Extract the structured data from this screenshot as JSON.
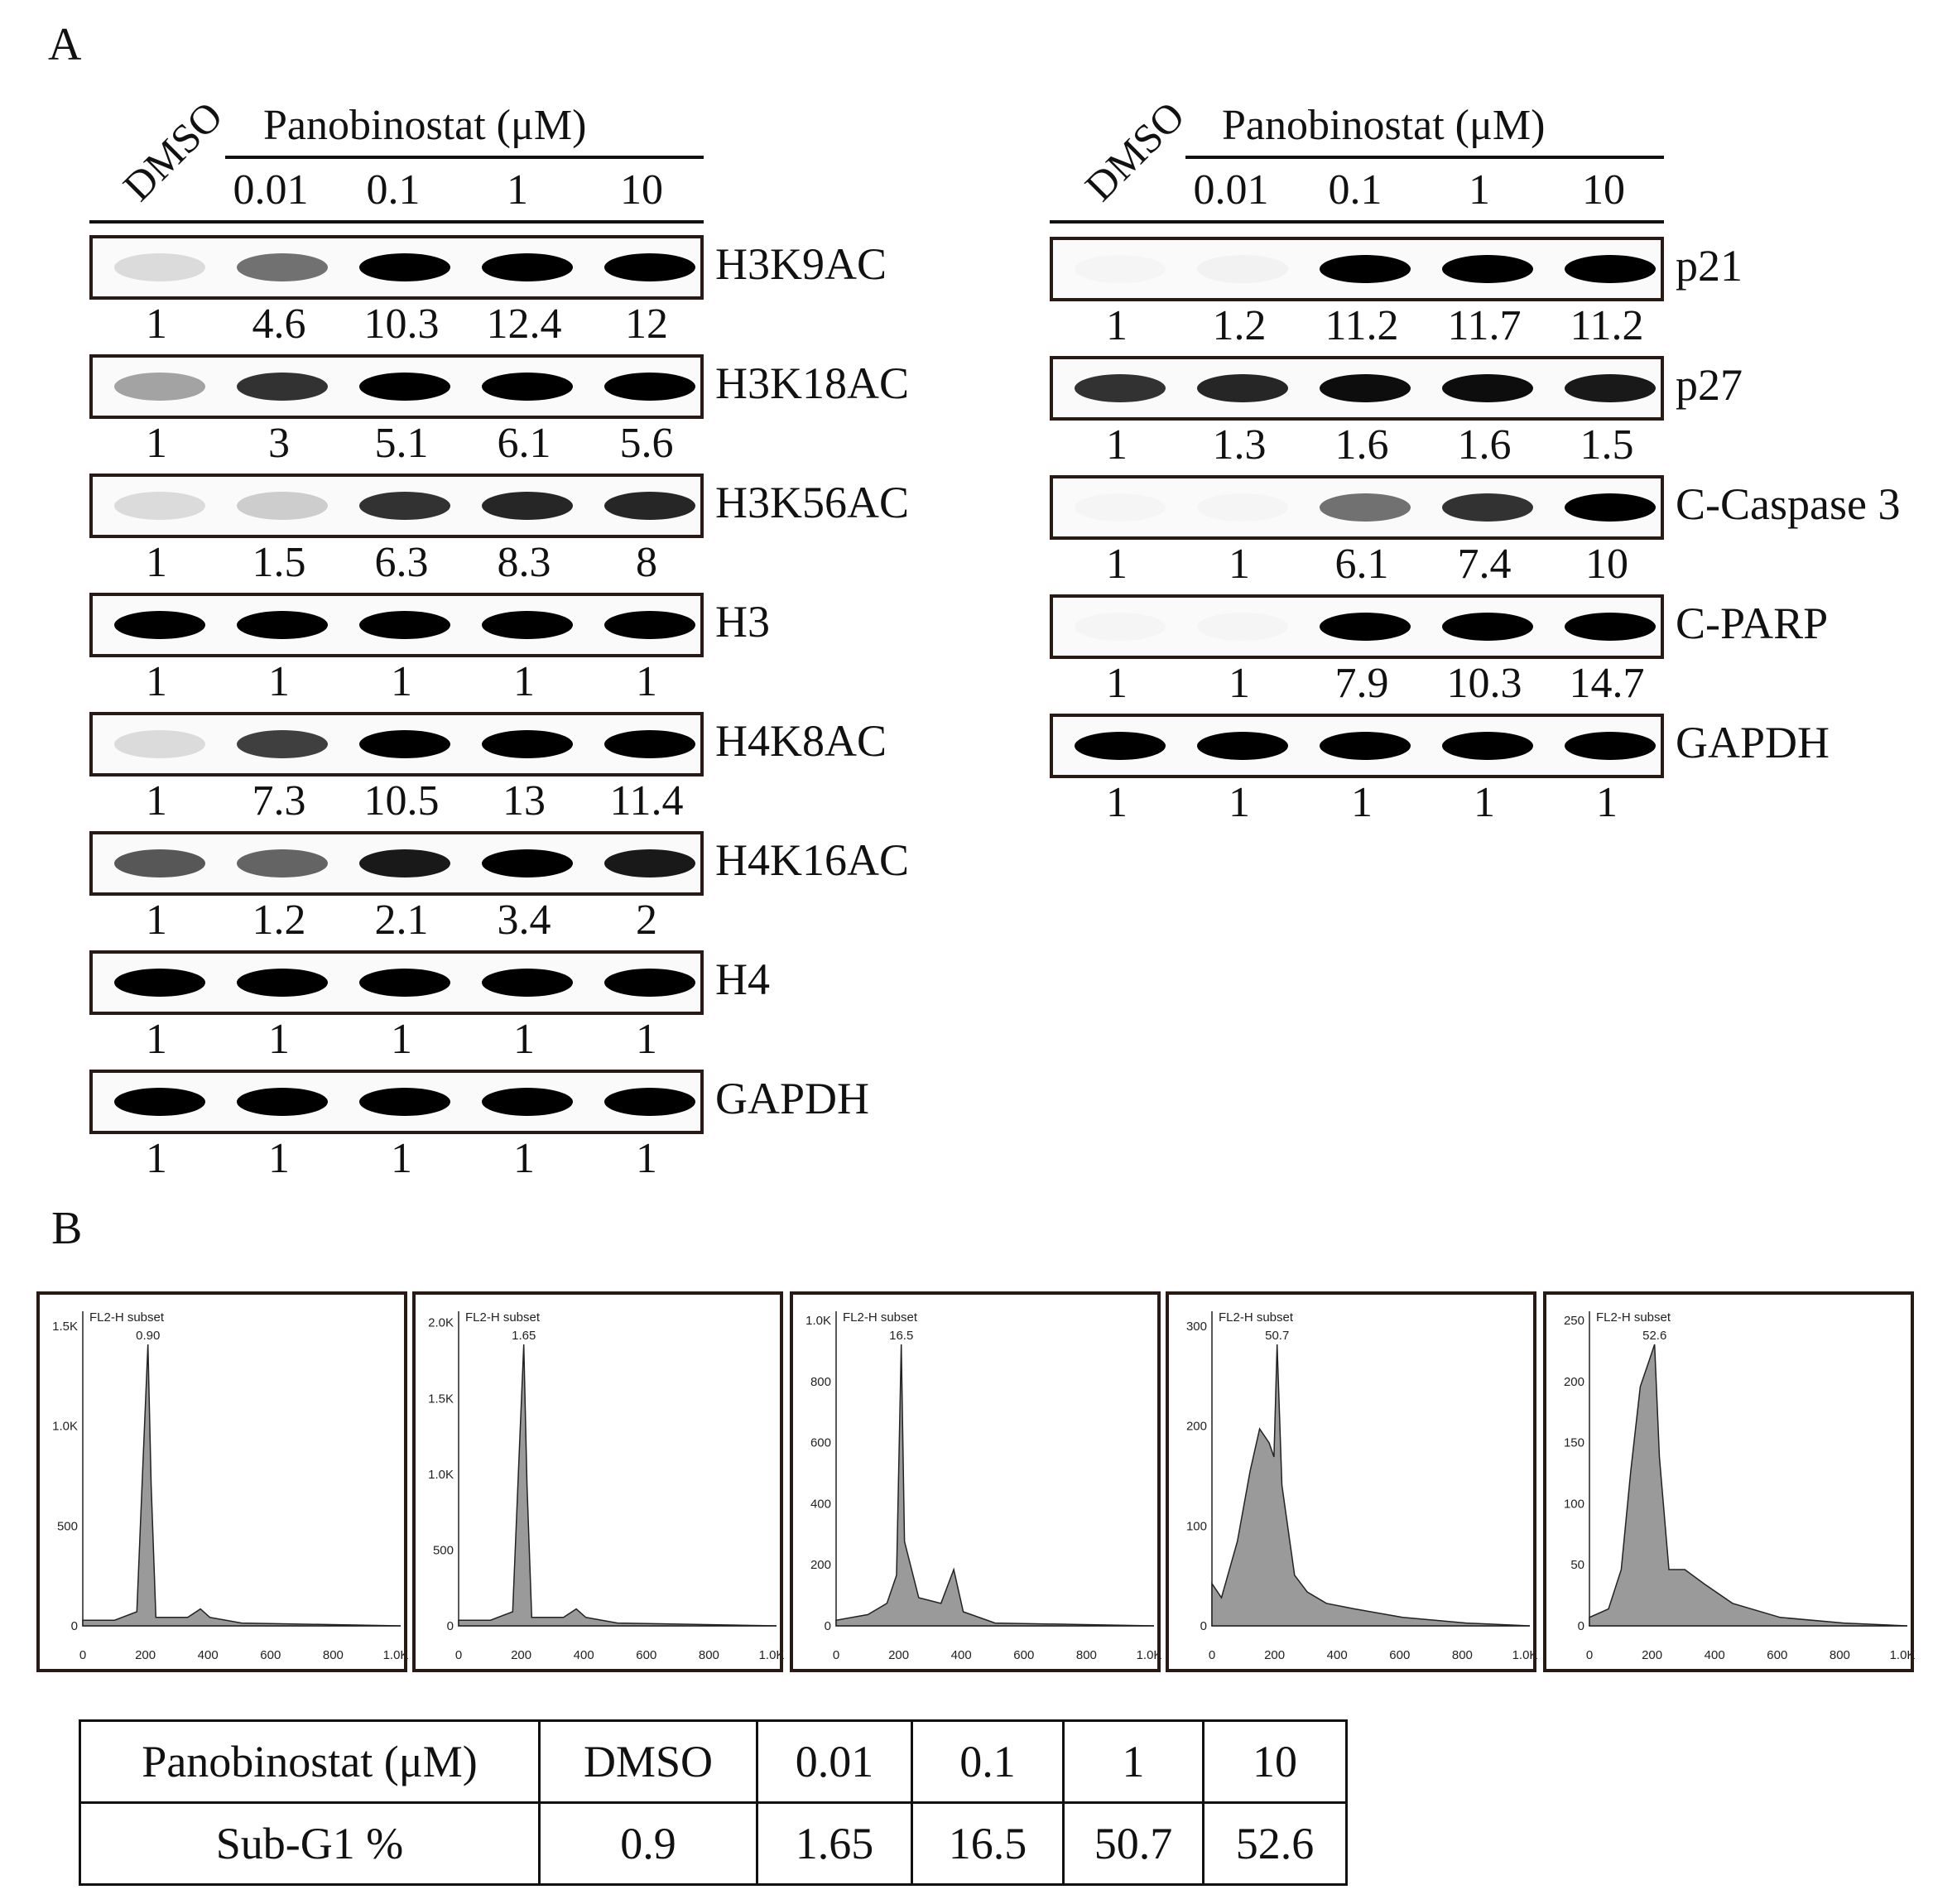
{
  "panel_a_label": "A",
  "panel_b_label": "B",
  "left": {
    "control": "DMSO",
    "treatment": "Panobinostat (μM)",
    "doses": [
      "0.01",
      "0.1",
      "1",
      "10"
    ],
    "blots": [
      {
        "name": "H3K9AC",
        "values": [
          "1",
          "4.6",
          "10.3",
          "12.4",
          "12"
        ],
        "intensity": [
          0.12,
          0.55,
          1,
          1,
          1
        ]
      },
      {
        "name": "H3K18AC",
        "values": [
          "1",
          "3",
          "5.1",
          "6.1",
          "5.6"
        ],
        "intensity": [
          0.35,
          0.8,
          1,
          1,
          1
        ]
      },
      {
        "name": "H3K56AC",
        "values": [
          "1",
          "1.5",
          "6.3",
          "8.3",
          "8"
        ],
        "intensity": [
          0.12,
          0.18,
          0.8,
          0.85,
          0.85
        ]
      },
      {
        "name": "H3",
        "values": [
          "1",
          "1",
          "1",
          "1",
          "1"
        ],
        "intensity": [
          1,
          1,
          1,
          1,
          1
        ]
      },
      {
        "name": "H4K8AC",
        "values": [
          "1",
          "7.3",
          "10.5",
          "13",
          "11.4"
        ],
        "intensity": [
          0.12,
          0.75,
          1,
          1,
          1
        ]
      },
      {
        "name": "H4K16AC",
        "values": [
          "1",
          "1.2",
          "2.1",
          "3.4",
          "2"
        ],
        "intensity": [
          0.65,
          0.6,
          0.9,
          1,
          0.9
        ]
      },
      {
        "name": "H4",
        "values": [
          "1",
          "1",
          "1",
          "1",
          "1"
        ],
        "intensity": [
          1,
          1,
          1,
          1,
          1
        ]
      },
      {
        "name": "GAPDH",
        "values": [
          "1",
          "1",
          "1",
          "1",
          "1"
        ],
        "intensity": [
          1,
          1,
          1,
          1,
          1
        ]
      }
    ]
  },
  "right": {
    "control": "DMSO",
    "treatment": "Panobinostat (μM)",
    "doses": [
      "0.01",
      "0.1",
      "1",
      "10"
    ],
    "blots": [
      {
        "name": "p21",
        "values": [
          "1",
          "1.2",
          "11.2",
          "11.7",
          "11.2"
        ],
        "intensity": [
          0.02,
          0.03,
          1,
          1,
          1
        ]
      },
      {
        "name": "p27",
        "values": [
          "1",
          "1.3",
          "1.6",
          "1.6",
          "1.5"
        ],
        "intensity": [
          0.8,
          0.85,
          0.95,
          0.95,
          0.9
        ]
      },
      {
        "name": "C-Caspase 3",
        "values": [
          "1",
          "1",
          "6.1",
          "7.4",
          "10"
        ],
        "intensity": [
          0.02,
          0.02,
          0.55,
          0.8,
          1
        ]
      },
      {
        "name": "C-PARP",
        "values": [
          "1",
          "1",
          "7.9",
          "10.3",
          "14.7"
        ],
        "intensity": [
          0.02,
          0.02,
          1,
          1,
          1
        ]
      },
      {
        "name": "GAPDH",
        "values": [
          "1",
          "1",
          "1",
          "1",
          "1"
        ],
        "intensity": [
          1,
          1,
          1,
          1,
          1
        ]
      }
    ]
  },
  "histograms": [
    {
      "gate": "FL2-H subset",
      "value": "0.90",
      "yticks": [
        "0",
        "500",
        "1.0K",
        "1.5K"
      ],
      "xticks": [
        "0",
        "200",
        "400",
        "600",
        "800",
        "1.0K"
      ],
      "shape": "sharp"
    },
    {
      "gate": "FL2-H subset",
      "value": "1.65",
      "yticks": [
        "0",
        "500",
        "1.0K",
        "1.5K",
        "2.0K"
      ],
      "xticks": [
        "0",
        "200",
        "400",
        "600",
        "800",
        "1.0K"
      ],
      "shape": "sharp"
    },
    {
      "gate": "FL2-H subset",
      "value": "16.5",
      "yticks": [
        "0",
        "200",
        "400",
        "600",
        "800",
        "1.0K"
      ],
      "xticks": [
        "0",
        "200",
        "400",
        "600",
        "800",
        "1.0K"
      ],
      "shape": "mid"
    },
    {
      "gate": "FL2-H subset",
      "value": "50.7",
      "yticks": [
        "0",
        "100",
        "200",
        "300"
      ],
      "xticks": [
        "0",
        "200",
        "400",
        "600",
        "800",
        "1.0K"
      ],
      "shape": "broad"
    },
    {
      "gate": "FL2-H subset",
      "value": "52.6",
      "yticks": [
        "0",
        "50",
        "100",
        "150",
        "200",
        "250"
      ],
      "xticks": [
        "0",
        "200",
        "400",
        "600",
        "800",
        "1.0K"
      ],
      "shape": "broad2"
    }
  ],
  "table": {
    "row1": [
      "Panobinostat (μM)",
      "DMSO",
      "0.01",
      "0.1",
      "1",
      "10"
    ],
    "row2": [
      "Sub-G1 %",
      "0.9",
      "1.65",
      "16.5",
      "50.7",
      "52.6"
    ]
  }
}
